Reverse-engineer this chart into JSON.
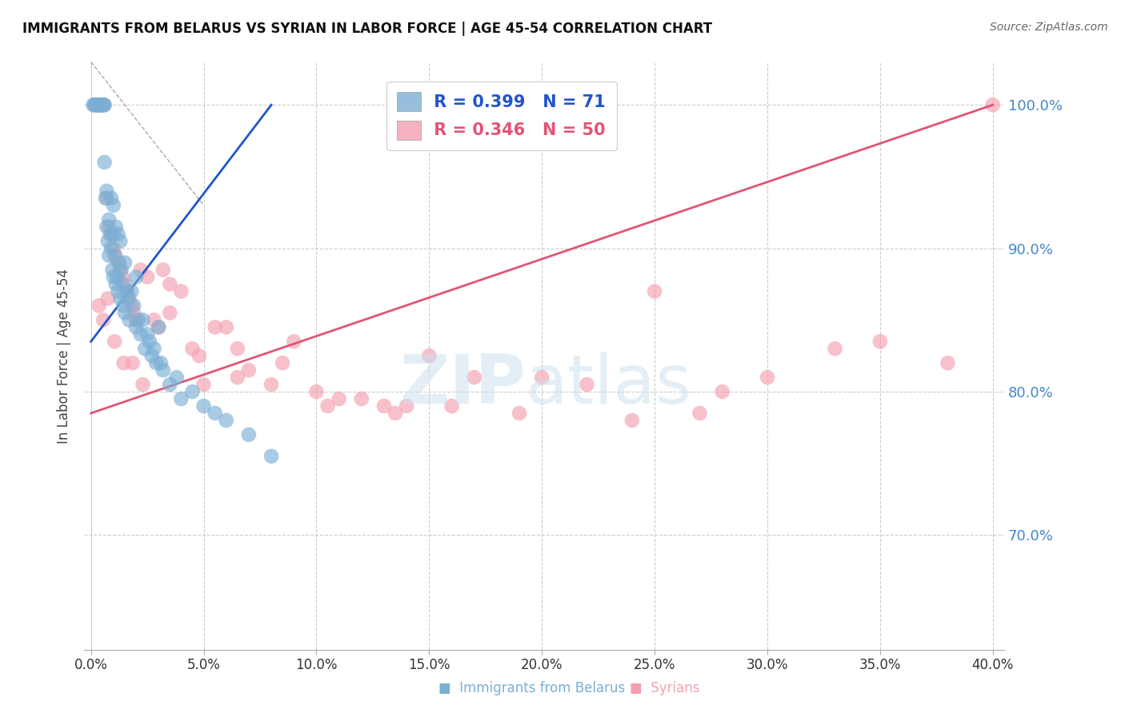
{
  "title": "IMMIGRANTS FROM BELARUS VS SYRIAN IN LABOR FORCE | AGE 45-54 CORRELATION CHART",
  "source": "Source: ZipAtlas.com",
  "ylabel": "In Labor Force | Age 45-54",
  "color_belarus": "#7bafd4",
  "color_syrian": "#f4a0b0",
  "color_trend_belarus": "#2255cc",
  "color_trend_syrian": "#e05575",
  "color_ylabel": "#4488cc",
  "legend_R_belarus": "R = 0.399",
  "legend_N_belarus": "N = 71",
  "legend_R_syrian": "R = 0.346",
  "legend_N_syrian": "N = 50",
  "belarus_x": [
    0.1,
    0.15,
    0.2,
    0.25,
    0.3,
    0.3,
    0.35,
    0.4,
    0.4,
    0.45,
    0.5,
    0.5,
    0.5,
    0.55,
    0.6,
    0.6,
    0.65,
    0.7,
    0.7,
    0.75,
    0.8,
    0.8,
    0.85,
    0.9,
    0.9,
    0.95,
    1.0,
    1.0,
    1.0,
    1.05,
    1.1,
    1.1,
    1.15,
    1.2,
    1.2,
    1.25,
    1.3,
    1.3,
    1.35,
    1.4,
    1.45,
    1.5,
    1.5,
    1.6,
    1.65,
    1.7,
    1.8,
    1.9,
    2.0,
    2.0,
    2.1,
    2.2,
    2.3,
    2.4,
    2.5,
    2.6,
    2.7,
    2.8,
    2.9,
    3.0,
    3.1,
    3.2,
    3.5,
    3.8,
    4.0,
    4.5,
    5.0,
    5.5,
    6.0,
    7.0,
    8.0
  ],
  "belarus_y": [
    100.0,
    100.0,
    100.0,
    100.0,
    100.0,
    100.0,
    100.0,
    100.0,
    100.0,
    100.0,
    100.0,
    100.0,
    100.0,
    100.0,
    100.0,
    96.0,
    93.5,
    94.0,
    91.5,
    90.5,
    92.0,
    89.5,
    91.0,
    93.5,
    90.0,
    88.5,
    93.0,
    91.0,
    88.0,
    89.5,
    91.5,
    87.5,
    88.0,
    91.0,
    87.0,
    89.0,
    90.5,
    86.5,
    88.5,
    87.5,
    86.0,
    89.0,
    85.5,
    87.0,
    86.5,
    85.0,
    87.0,
    86.0,
    88.0,
    84.5,
    85.0,
    84.0,
    85.0,
    83.0,
    84.0,
    83.5,
    82.5,
    83.0,
    82.0,
    84.5,
    82.0,
    81.5,
    80.5,
    81.0,
    79.5,
    80.0,
    79.0,
    78.5,
    78.0,
    77.0,
    75.5
  ],
  "syrian_x": [
    0.2,
    0.3,
    0.4,
    0.5,
    0.6,
    0.7,
    0.8,
    0.9,
    1.0,
    1.1,
    1.2,
    1.3,
    1.4,
    1.5,
    1.6,
    1.7,
    1.8,
    1.9,
    2.0,
    2.2,
    2.5,
    2.8,
    3.0,
    3.2,
    3.5,
    4.0,
    4.5,
    5.0,
    5.5,
    6.0,
    6.5,
    7.0,
    8.0,
    9.0,
    10.0,
    11.0,
    12.0,
    13.0,
    14.0,
    15.0,
    17.0,
    20.0,
    22.0,
    25.0,
    28.0,
    30.0,
    33.0,
    35.0,
    38.0,
    40.0
  ],
  "syrian_y": [
    100.0,
    100.0,
    100.0,
    100.0,
    100.0,
    93.5,
    91.5,
    91.0,
    90.0,
    89.5,
    89.0,
    88.5,
    88.0,
    87.5,
    87.0,
    86.5,
    86.0,
    85.5,
    85.0,
    88.5,
    88.0,
    85.0,
    84.5,
    88.5,
    87.5,
    87.0,
    83.0,
    80.5,
    84.5,
    84.5,
    83.0,
    81.5,
    80.5,
    83.5,
    80.0,
    79.5,
    79.5,
    79.0,
    79.0,
    82.5,
    81.0,
    81.0,
    80.5,
    87.0,
    80.0,
    81.0,
    83.0,
    83.5,
    82.0,
    100.0
  ],
  "extra_syrian_x": [
    0.35,
    0.55,
    0.75,
    1.05,
    1.45,
    1.85,
    2.3,
    3.5,
    4.8,
    6.5,
    8.5,
    10.5,
    13.5,
    16.0,
    19.0,
    24.0,
    27.0
  ],
  "extra_syrian_y": [
    86.0,
    85.0,
    86.5,
    83.5,
    82.0,
    82.0,
    80.5,
    85.5,
    82.5,
    81.0,
    82.0,
    79.0,
    78.5,
    79.0,
    78.5,
    78.0,
    78.5
  ],
  "xlim": [
    -0.3,
    40.5
  ],
  "ylim": [
    62.0,
    103.0
  ],
  "xtick_vals": [
    0.0,
    5.0,
    10.0,
    15.0,
    20.0,
    25.0,
    30.0,
    35.0,
    40.0
  ],
  "xtick_labels": [
    "0.0%",
    "5.0%",
    "10.0%",
    "15.0%",
    "20.0%",
    "25.0%",
    "30.0%",
    "35.0%",
    "40.0%"
  ],
  "ytick_vals": [
    70.0,
    80.0,
    90.0,
    100.0
  ],
  "ytick_labels": [
    "70.0%",
    "80.0%",
    "90.0%",
    "100.0%"
  ],
  "trend_belarus_x0": 0.0,
  "trend_belarus_x1": 8.0,
  "trend_belarus_y0": 83.5,
  "trend_belarus_y1": 100.0,
  "trend_syrian_x0": 0.0,
  "trend_syrian_x1": 40.0,
  "trend_syrian_y0": 78.5,
  "trend_syrian_y1": 100.0,
  "dash_x0": 0.0,
  "dash_x1": 5.0,
  "dash_y0": 103.0,
  "dash_y1": 93.0
}
